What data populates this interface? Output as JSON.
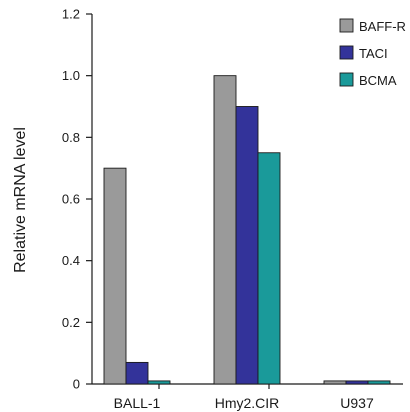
{
  "chart_data": {
    "type": "bar",
    "title": "",
    "xlabel": "",
    "ylabel": "Relative mRNA level",
    "ylim": [
      0,
      1.2
    ],
    "yticks": [
      "0",
      "0.2",
      "0.4",
      "0.6",
      "0.8",
      "1.0",
      "1.2"
    ],
    "grid": false,
    "legend_position": "top-right",
    "categories": [
      "BALL-1",
      "Hmy2.CIR",
      "U937"
    ],
    "series": [
      {
        "name": "BAFF-R",
        "color": "#9a9a9a",
        "values": [
          0.7,
          1.0,
          0.01
        ]
      },
      {
        "name": "TACI",
        "color": "#33339a",
        "values": [
          0.07,
          0.9,
          0.01
        ]
      },
      {
        "name": "BCMA",
        "color": "#1a9a9a",
        "values": [
          0.01,
          0.75,
          0.01
        ]
      }
    ]
  }
}
